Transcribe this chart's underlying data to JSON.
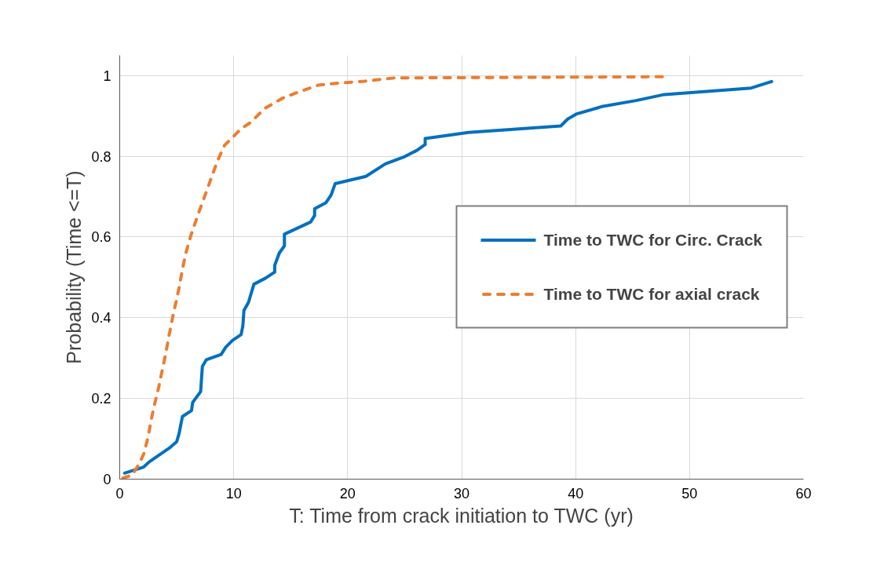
{
  "chart_data": {
    "type": "line",
    "xlabel": "T: Time from crack initiation to TWC (yr)",
    "ylabel": "Probability (Time <=T)",
    "xlim": [
      0,
      60
    ],
    "xticks": [
      0,
      10,
      20,
      30,
      40,
      50,
      60
    ],
    "ylim": [
      0,
      1.05
    ],
    "yticks": [
      0,
      0.2,
      0.4,
      0.6,
      0.8,
      1
    ],
    "grid": true,
    "legend": "right",
    "marker": "none",
    "series": [
      {
        "name": "Time to TWC for Circ. Crack",
        "color": "#0070c0",
        "line_style": "solid",
        "x": [
          0.43,
          2.1,
          2.6,
          4.35,
          5.0,
          5.2,
          5.5,
          6.3,
          6.4,
          7.1,
          7.25,
          7.6,
          8.9,
          9.3,
          9.9,
          10.65,
          10.8,
          10.9,
          11.3,
          11.77,
          12.8,
          13.6,
          13.6,
          14.0,
          14.45,
          14.45,
          16.75,
          17.1,
          17.1,
          18.1,
          18.55,
          18.9,
          21.6,
          23.3,
          25.0,
          26.1,
          26.8,
          26.8,
          30.6,
          38.7,
          39.3,
          40.1,
          42.3,
          45.3,
          47.8,
          55.4,
          57.2
        ],
        "values": [
          0.015,
          0.03,
          0.043,
          0.077,
          0.093,
          0.112,
          0.155,
          0.17,
          0.19,
          0.217,
          0.279,
          0.296,
          0.309,
          0.327,
          0.344,
          0.358,
          0.379,
          0.418,
          0.438,
          0.483,
          0.498,
          0.513,
          0.53,
          0.56,
          0.578,
          0.607,
          0.637,
          0.653,
          0.67,
          0.685,
          0.704,
          0.732,
          0.75,
          0.781,
          0.799,
          0.815,
          0.829,
          0.844,
          0.859,
          0.875,
          0.892,
          0.905,
          0.923,
          0.938,
          0.953,
          0.969,
          0.985
        ]
      },
      {
        "name": "Time to TWC for axial crack",
        "color": "#ed7d31",
        "line_style": "dashed",
        "x": [
          0.07,
          1.1,
          1.7,
          2.1,
          2.5,
          2.7,
          3.0,
          3.4,
          3.6,
          4.0,
          4.35,
          4.75,
          4.95,
          5.25,
          5.5,
          5.8,
          6.2,
          6.85,
          7.7,
          8.3,
          8.6,
          9.2,
          10.65,
          11.5,
          12.7,
          14.3,
          15.3,
          16.6,
          17.4,
          19.1,
          20.1,
          21.5,
          24.1,
          47.9
        ],
        "values": [
          0.001,
          0.01,
          0.038,
          0.062,
          0.105,
          0.138,
          0.179,
          0.225,
          0.252,
          0.306,
          0.359,
          0.416,
          0.44,
          0.48,
          0.52,
          0.56,
          0.6,
          0.654,
          0.72,
          0.767,
          0.79,
          0.827,
          0.868,
          0.884,
          0.918,
          0.944,
          0.955,
          0.968,
          0.976,
          0.981,
          0.983,
          0.986,
          0.994,
          0.997
        ]
      }
    ]
  }
}
